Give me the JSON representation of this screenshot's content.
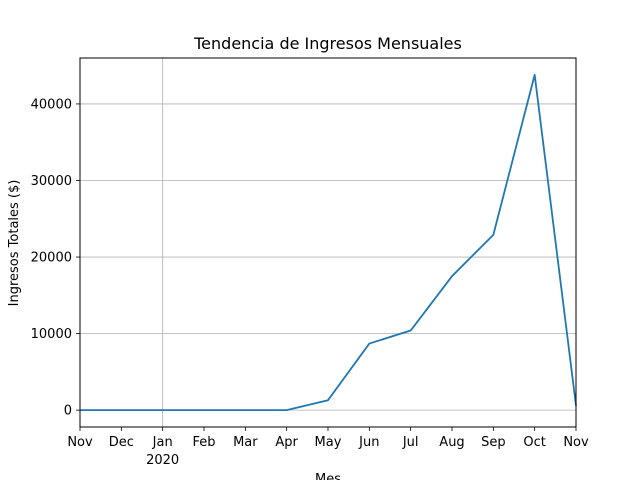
{
  "chart_data": {
    "type": "line",
    "title": "Tendencia de Ingresos Mensuales",
    "xlabel": "Mes",
    "ylabel": "Ingresos Totales ($)",
    "x": [
      "2019-11",
      "2019-12",
      "2020-01",
      "2020-02",
      "2020-03",
      "2020-04",
      "2020-05",
      "2020-06",
      "2020-07",
      "2020-08",
      "2020-09",
      "2020-10",
      "2020-11"
    ],
    "x_tick_labels": [
      "Nov",
      "Dec",
      "Jan",
      "Feb",
      "Mar",
      "Apr",
      "May",
      "Jun",
      "Jul",
      "Aug",
      "Sep",
      "Oct",
      "Nov"
    ],
    "x_year_label": "2020",
    "series": [
      {
        "values": [
          0,
          0,
          0,
          0,
          0,
          0,
          1300,
          8700,
          10400,
          17500,
          22900,
          43800,
          600
        ],
        "color": "#1f77b4"
      }
    ],
    "yticks": [
      0,
      10000,
      20000,
      30000,
      40000
    ],
    "ylim": [
      -2200,
      46000
    ],
    "grid": true
  }
}
